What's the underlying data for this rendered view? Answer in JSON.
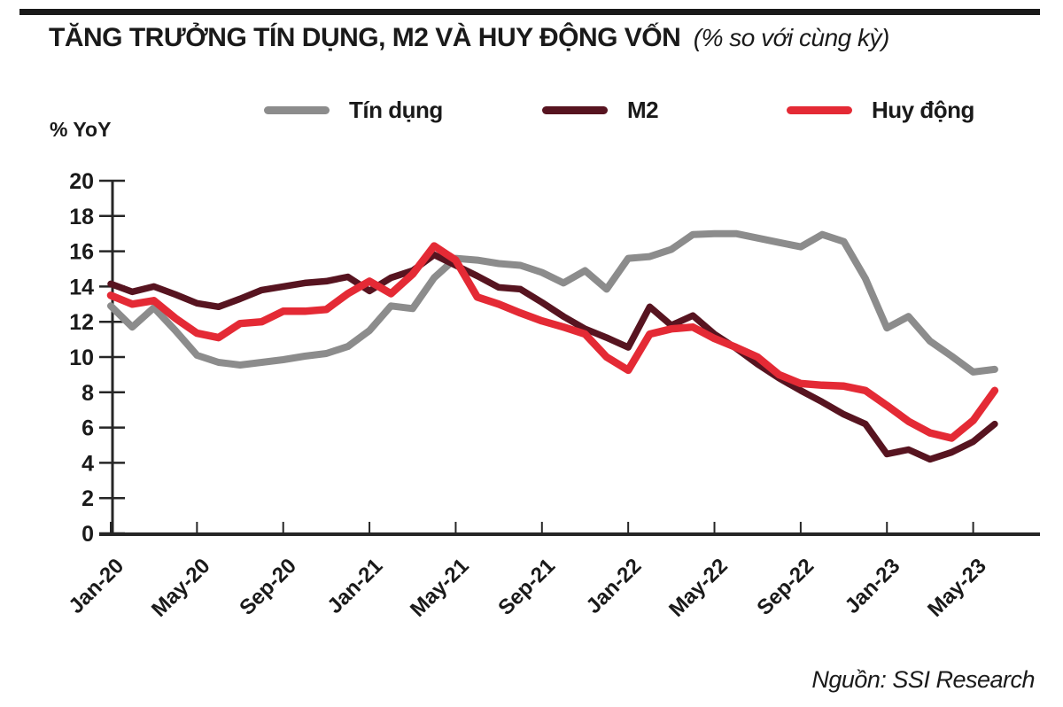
{
  "header": {
    "title_main": "TĂNG TRƯỞNG TÍN DỤNG, M2 VÀ HUY ĐỘNG VỐN",
    "title_sub": "(% so với cùng kỳ)"
  },
  "source": {
    "label": "Nguồn: SSI Research"
  },
  "chart_data": {
    "type": "line",
    "title": "TĂNG TRƯỞNG TÍN DỤNG, M2 VÀ HUY ĐỘNG VỐN (% so với cùng kỳ)",
    "unit_label": "% YoY",
    "ylim": [
      0,
      20
    ],
    "yticks": [
      0,
      2,
      4,
      6,
      8,
      10,
      12,
      14,
      16,
      18,
      20
    ],
    "grid": false,
    "legend_position": "top",
    "xtick_every": 4,
    "x": [
      "Jan-20",
      "Feb-20",
      "Mar-20",
      "Apr-20",
      "May-20",
      "Jun-20",
      "Jul-20",
      "Aug-20",
      "Sep-20",
      "Oct-20",
      "Nov-20",
      "Dec-20",
      "Jan-21",
      "Feb-21",
      "Mar-21",
      "Apr-21",
      "May-21",
      "Jun-21",
      "Jul-21",
      "Aug-21",
      "Sep-21",
      "Oct-21",
      "Nov-21",
      "Dec-21",
      "Jan-22",
      "Feb-22",
      "Mar-22",
      "Apr-22",
      "May-22",
      "Jun-22",
      "Jul-22",
      "Aug-22",
      "Sep-22",
      "Oct-22",
      "Nov-22",
      "Dec-22",
      "Jan-23",
      "Feb-23",
      "Mar-23",
      "Apr-23",
      "May-23",
      "Jun-23"
    ],
    "series": [
      {
        "name": "Tín dụng",
        "color": "#8c8c8c",
        "stroke_width": 8,
        "values": [
          12.9,
          11.7,
          12.8,
          11.5,
          10.1,
          9.7,
          9.55,
          9.7,
          9.85,
          10.05,
          10.2,
          10.6,
          11.5,
          12.9,
          12.75,
          14.5,
          15.6,
          15.5,
          15.3,
          15.2,
          14.8,
          14.2,
          14.9,
          13.85,
          15.6,
          15.7,
          16.1,
          16.95,
          17.0,
          17.0,
          16.75,
          16.5,
          16.25,
          16.95,
          16.55,
          14.45,
          11.65,
          12.3,
          10.9,
          10.05,
          9.15,
          9.3
        ]
      },
      {
        "name": "M2",
        "color": "#571420",
        "stroke_width": 7.5,
        "values": [
          14.15,
          13.7,
          14.0,
          13.55,
          13.05,
          12.85,
          13.3,
          13.8,
          14.0,
          14.2,
          14.3,
          14.55,
          13.75,
          14.5,
          14.9,
          15.8,
          15.2,
          14.6,
          13.95,
          13.85,
          13.1,
          12.3,
          11.6,
          11.1,
          10.55,
          12.85,
          11.8,
          12.35,
          11.3,
          10.5,
          9.6,
          8.8,
          8.1,
          7.45,
          6.75,
          6.2,
          4.5,
          4.75,
          4.2,
          4.6,
          5.2,
          6.2
        ]
      },
      {
        "name": "Huy động",
        "color": "#e42a35",
        "stroke_width": 8.5,
        "values": [
          13.5,
          13.0,
          13.2,
          12.2,
          11.35,
          11.1,
          11.9,
          12.0,
          12.6,
          12.6,
          12.7,
          13.6,
          14.3,
          13.6,
          14.7,
          16.3,
          15.5,
          13.4,
          13.0,
          12.5,
          12.05,
          11.7,
          11.3,
          10.0,
          9.25,
          11.3,
          11.6,
          11.7,
          11.05,
          10.55,
          10.0,
          9.0,
          8.5,
          8.4,
          8.35,
          8.1,
          7.25,
          6.35,
          5.7,
          5.4,
          6.4,
          8.1
        ]
      }
    ]
  }
}
